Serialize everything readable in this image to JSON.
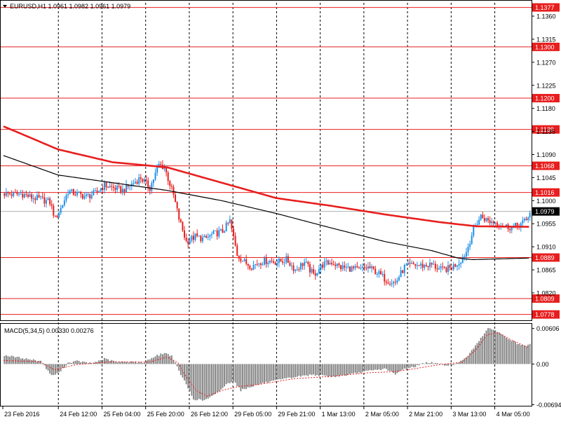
{
  "header": {
    "symbol_text": "EURUSD,H1  1.0961 1.0982 1.0961 1.0979",
    "macd_label": "MACD(5,34,5)  0.00330  0.00276"
  },
  "colors": {
    "background": "#ffffff",
    "grid": "#000000",
    "bull_candle": "#1e8fe8",
    "bear_candle": "#e81e1e",
    "ma_slow": "#e81e1e",
    "ma_fast": "#000000",
    "level_line": "#e81e1e",
    "level_label_bg": "#e81e1e",
    "current_price_bg": "#000000",
    "macd_hist": "#808080",
    "macd_signal": "#e81e1e"
  },
  "chart_data": [
    {
      "type": "candlestick",
      "symbol": "EURUSD",
      "timeframe": "H1",
      "ohlc_current": {
        "open": 1.0961,
        "high": 1.0982,
        "low": 1.0961,
        "close": 1.0979
      },
      "ylim": [
        1.0768,
        1.1386
      ],
      "y_ticks": [
        "1.1360",
        "1.1315",
        "1.1270",
        "1.1225",
        "1.1180",
        "1.1135",
        "1.1090",
        "1.1045",
        "1.1000",
        "1.0955",
        "1.0910",
        "1.0865",
        "1.0820"
      ],
      "x_tick_labels": [
        "23 Feb 2016",
        "24 Feb 12:00",
        "25 Feb 04:00",
        "25 Feb 20:00",
        "26 Feb 12:00",
        "29 Feb 05:00",
        "29 Feb 21:00",
        "1 Mar 13:00",
        "2 Mar 05:00",
        "2 Mar 21:00",
        "3 Mar 13:00",
        "4 Mar 05:00"
      ],
      "levels": [
        "1.1377",
        "1.1300",
        "1.1200",
        "1.1139",
        "1.1068",
        "1.1016",
        "1.0889",
        "1.0809",
        "1.0778"
      ],
      "current_price": "1.0979",
      "grid": true,
      "close_path": [
        [
          0,
          1.1014
        ],
        [
          5,
          1.1012
        ],
        [
          10,
          1.1013
        ],
        [
          15,
          1.1006
        ],
        [
          20,
          1.1003
        ],
        [
          25,
          1.0997
        ],
        [
          28,
          1.0965
        ],
        [
          31,
          1.0985
        ],
        [
          35,
          1.1018
        ],
        [
          40,
          1.1013
        ],
        [
          45,
          1.1008
        ],
        [
          50,
          1.1014
        ],
        [
          55,
          1.103
        ],
        [
          60,
          1.1025
        ],
        [
          65,
          1.102
        ],
        [
          70,
          1.1032
        ],
        [
          75,
          1.1045
        ],
        [
          80,
          1.1025
        ],
        [
          85,
          1.107
        ],
        [
          88,
          1.1065
        ],
        [
          90,
          1.1043
        ],
        [
          93,
          1.101
        ],
        [
          96,
          1.0965
        ],
        [
          100,
          1.092
        ],
        [
          105,
          1.093
        ],
        [
          110,
          1.0925
        ],
        [
          115,
          1.0935
        ],
        [
          120,
          1.094
        ],
        [
          124,
          1.096
        ],
        [
          128,
          1.0895
        ],
        [
          132,
          1.088
        ],
        [
          136,
          1.0872
        ],
        [
          140,
          1.088
        ],
        [
          145,
          1.0883
        ],
        [
          150,
          1.088
        ],
        [
          155,
          1.0885
        ],
        [
          160,
          1.0865
        ],
        [
          165,
          1.088
        ],
        [
          170,
          1.0855
        ],
        [
          175,
          1.0875
        ],
        [
          180,
          1.088
        ],
        [
          185,
          1.087
        ],
        [
          190,
          1.0868
        ],
        [
          195,
          1.0865
        ],
        [
          200,
          1.087
        ],
        [
          205,
          1.086
        ],
        [
          210,
          1.0845
        ],
        [
          215,
          1.084
        ],
        [
          220,
          1.087
        ],
        [
          225,
          1.0875
        ],
        [
          230,
          1.0873
        ],
        [
          235,
          1.0875
        ],
        [
          240,
          1.0865
        ],
        [
          245,
          1.0868
        ],
        [
          250,
          1.088
        ],
        [
          254,
          1.09
        ],
        [
          258,
          1.0945
        ],
        [
          262,
          1.097
        ],
        [
          266,
          1.096
        ],
        [
          270,
          1.0958
        ],
        [
          275,
          1.095
        ],
        [
          280,
          1.0948
        ],
        [
          284,
          1.0955
        ],
        [
          287,
          1.0961
        ],
        [
          289,
          1.0979
        ]
      ],
      "ma_slow_path": [
        [
          0,
          1.1145
        ],
        [
          30,
          1.11
        ],
        [
          60,
          1.1075
        ],
        [
          90,
          1.1065
        ],
        [
          120,
          1.1035
        ],
        [
          150,
          1.1005
        ],
        [
          180,
          1.099
        ],
        [
          210,
          1.0973
        ],
        [
          240,
          1.0958
        ],
        [
          260,
          1.095
        ],
        [
          289,
          1.0949
        ]
      ],
      "ma_fast_path": [
        [
          0,
          1.1088
        ],
        [
          30,
          1.105
        ],
        [
          60,
          1.1035
        ],
        [
          90,
          1.102
        ],
        [
          120,
          1.1
        ],
        [
          150,
          1.0975
        ],
        [
          180,
          1.0947
        ],
        [
          210,
          1.092
        ],
        [
          235,
          1.0903
        ],
        [
          250,
          1.0888
        ],
        [
          258,
          1.0885
        ],
        [
          289,
          1.0888
        ]
      ]
    },
    {
      "type": "bar",
      "name": "MACD(5,34,5)",
      "values_current": {
        "macd": 0.0033,
        "signal": 0.00276
      },
      "ylim": [
        -0.007,
        0.0065
      ],
      "y_ticks": [
        "0.00606",
        "0.00",
        "-0.00694"
      ],
      "macd_path": [
        [
          0,
          0.0015
        ],
        [
          10,
          0.001
        ],
        [
          20,
          0.0005
        ],
        [
          26,
          -0.002
        ],
        [
          30,
          -0.0015
        ],
        [
          35,
          0.0002
        ],
        [
          40,
          0.0005
        ],
        [
          48,
          0.0001
        ],
        [
          55,
          0.0009
        ],
        [
          62,
          0.0003
        ],
        [
          70,
          0.0004
        ],
        [
          76,
          0.0002
        ],
        [
          82,
          0.0012
        ],
        [
          88,
          0.0019
        ],
        [
          92,
          0.0014
        ],
        [
          96,
          -0.0012
        ],
        [
          100,
          -0.0035
        ],
        [
          104,
          -0.006
        ],
        [
          110,
          -0.0062
        ],
        [
          116,
          -0.0052
        ],
        [
          122,
          -0.0035
        ],
        [
          126,
          -0.0028
        ],
        [
          130,
          -0.0045
        ],
        [
          136,
          -0.0038
        ],
        [
          142,
          -0.0033
        ],
        [
          150,
          -0.0028
        ],
        [
          160,
          -0.0022
        ],
        [
          170,
          -0.0018
        ],
        [
          180,
          -0.0022
        ],
        [
          190,
          -0.0018
        ],
        [
          200,
          -0.0012
        ],
        [
          210,
          -0.0008
        ],
        [
          215,
          -0.0018
        ],
        [
          220,
          -0.0008
        ],
        [
          226,
          -0.0004
        ],
        [
          232,
          0.0003
        ],
        [
          238,
          0.0001
        ],
        [
          244,
          -0.0003
        ],
        [
          250,
          0.0002
        ],
        [
          256,
          0.0018
        ],
        [
          262,
          0.0045
        ],
        [
          266,
          0.006
        ],
        [
          270,
          0.0058
        ],
        [
          276,
          0.0045
        ],
        [
          282,
          0.0035
        ],
        [
          286,
          0.003
        ],
        [
          289,
          0.0033
        ]
      ],
      "signal_path": [
        [
          0,
          0.0006
        ],
        [
          20,
          0.0004
        ],
        [
          28,
          -0.001
        ],
        [
          40,
          -0.0001
        ],
        [
          60,
          0.0004
        ],
        [
          80,
          0.0003
        ],
        [
          90,
          0.0012
        ],
        [
          96,
          0.0002
        ],
        [
          100,
          -0.002
        ],
        [
          106,
          -0.0045
        ],
        [
          112,
          -0.0055
        ],
        [
          120,
          -0.0045
        ],
        [
          130,
          -0.0038
        ],
        [
          140,
          -0.0035
        ],
        [
          160,
          -0.0025
        ],
        [
          180,
          -0.0021
        ],
        [
          200,
          -0.0015
        ],
        [
          215,
          -0.0013
        ],
        [
          226,
          -0.0008
        ],
        [
          240,
          -0.0001
        ],
        [
          252,
          0.0003
        ],
        [
          260,
          0.0025
        ],
        [
          266,
          0.005
        ],
        [
          272,
          0.0053
        ],
        [
          280,
          0.004
        ],
        [
          289,
          0.00276
        ]
      ]
    }
  ]
}
